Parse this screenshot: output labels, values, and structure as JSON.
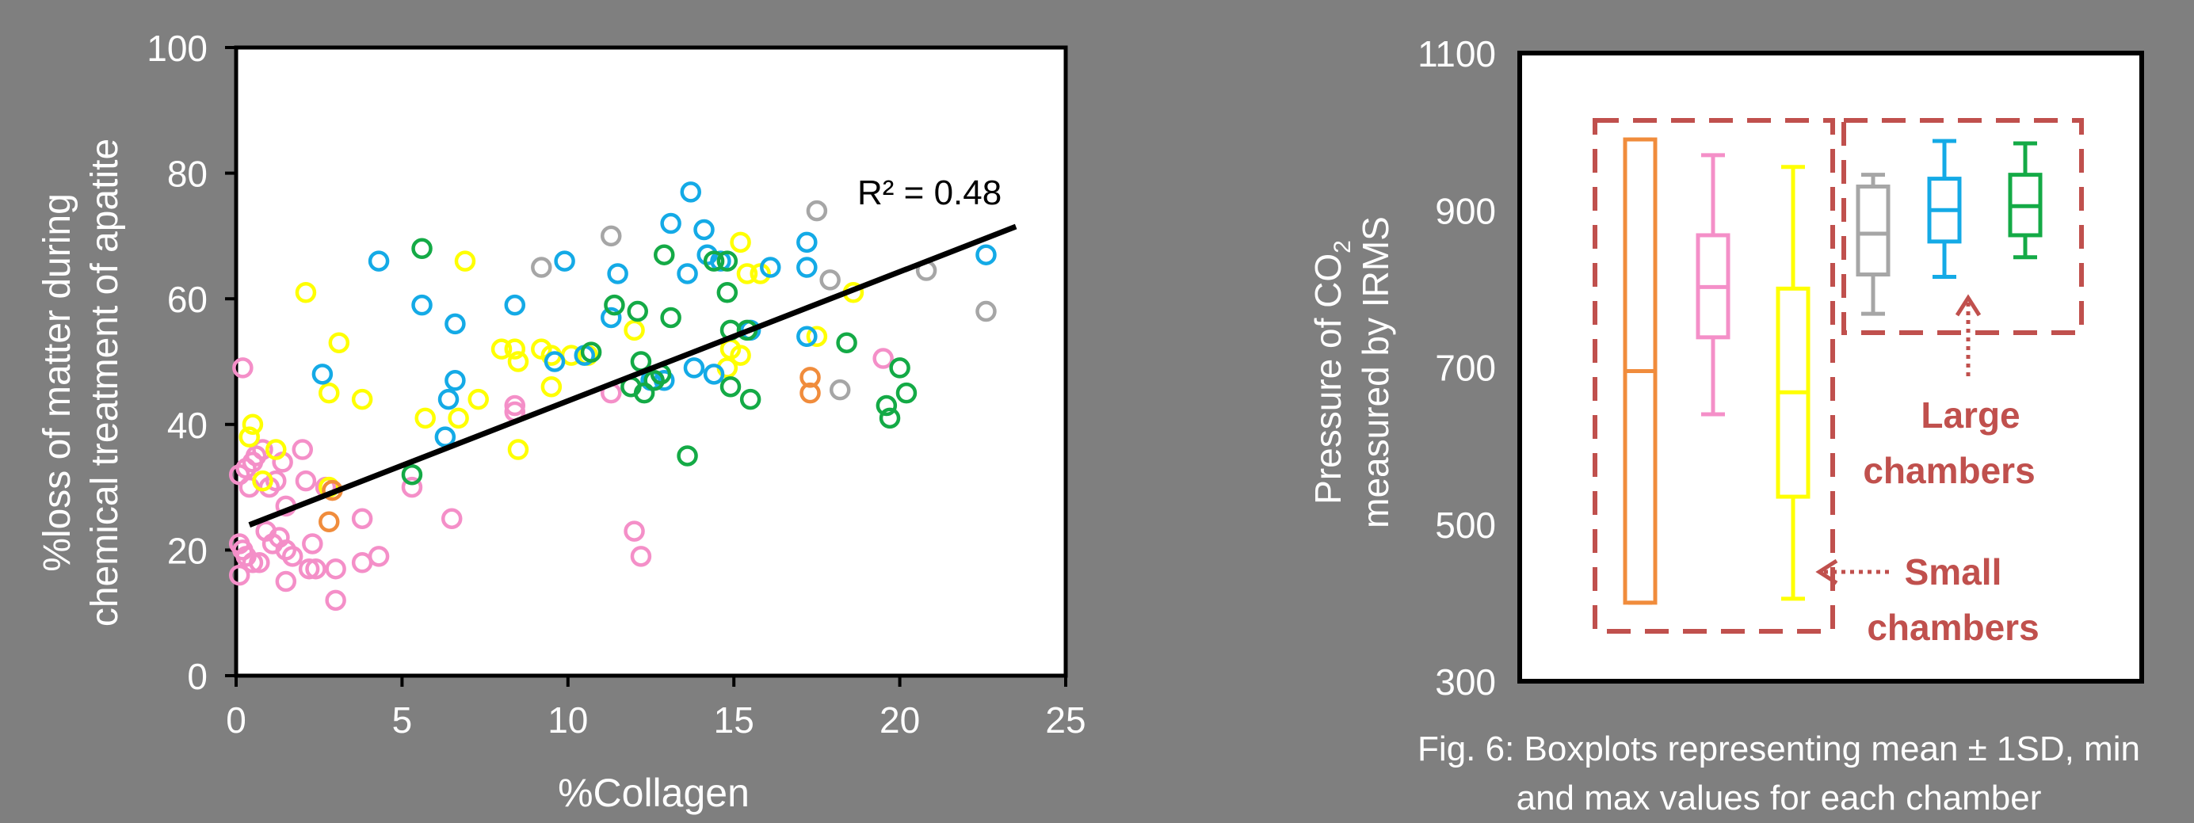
{
  "chart_data": [
    {
      "type": "scatter",
      "xlabel": "%Collagen",
      "ylabel_lines": [
        "%loss of matter during",
        "chemical treatment of apatite"
      ],
      "xlim": [
        0,
        25
      ],
      "ylim": [
        0,
        100
      ],
      "xticks": [
        0,
        5,
        10,
        15,
        20,
        25
      ],
      "yticks": [
        0,
        20,
        40,
        60,
        80,
        100
      ],
      "annotation": "R² = 0.48",
      "trendline": {
        "x": [
          0.4,
          23.5
        ],
        "y": [
          24,
          71.5
        ]
      },
      "colors": {
        "pink": "#f48fc8",
        "yellow": "#ffff00",
        "orange": "#f08c3c",
        "blue": "#14aae6",
        "green": "#14aa46",
        "gray": "#a6a6a6"
      },
      "series": [
        {
          "color": "pink",
          "points": [
            [
              0.2,
              49
            ],
            [
              0.1,
              32
            ],
            [
              0.3,
              33
            ],
            [
              0.5,
              34
            ],
            [
              0.6,
              35
            ],
            [
              0.4,
              30
            ],
            [
              0.8,
              36
            ],
            [
              1,
              30
            ],
            [
              1.2,
              31
            ],
            [
              1.4,
              34
            ],
            [
              1.5,
              27
            ],
            [
              0.1,
              21
            ],
            [
              0.2,
              20
            ],
            [
              0.3,
              19
            ],
            [
              0.1,
              16
            ],
            [
              0.5,
              18
            ],
            [
              0.7,
              18
            ],
            [
              0.9,
              23
            ],
            [
              1.1,
              21
            ],
            [
              1.3,
              22
            ],
            [
              1.5,
              20
            ],
            [
              1.7,
              19
            ],
            [
              1.5,
              15
            ],
            [
              2,
              36
            ],
            [
              2.1,
              31
            ],
            [
              2.2,
              17
            ],
            [
              2.4,
              17
            ],
            [
              2.3,
              21
            ],
            [
              2.7,
              30
            ],
            [
              3,
              17
            ],
            [
              3,
              12
            ],
            [
              3.8,
              25
            ],
            [
              3.8,
              18
            ],
            [
              4.3,
              19
            ],
            [
              5.3,
              30
            ],
            [
              6.5,
              25
            ],
            [
              8.4,
              43
            ],
            [
              8.4,
              42
            ],
            [
              11.3,
              45
            ],
            [
              12,
              23
            ],
            [
              12.2,
              19
            ],
            [
              19.5,
              50.5
            ]
          ]
        },
        {
          "color": "yellow",
          "points": [
            [
              0.4,
              38
            ],
            [
              0.5,
              40
            ],
            [
              0.8,
              31
            ],
            [
              1.2,
              36
            ],
            [
              2.1,
              61
            ],
            [
              2.8,
              45
            ],
            [
              2.8,
              30
            ],
            [
              3.1,
              53
            ],
            [
              3.8,
              44
            ],
            [
              5.7,
              41
            ],
            [
              7.3,
              44
            ],
            [
              6.7,
              41
            ],
            [
              6.9,
              66
            ],
            [
              8,
              52
            ],
            [
              8.4,
              52
            ],
            [
              8.5,
              50
            ],
            [
              8.5,
              36
            ],
            [
              9.2,
              52
            ],
            [
              9.5,
              46
            ],
            [
              9.5,
              51
            ],
            [
              10.1,
              51
            ],
            [
              10.6,
              51
            ],
            [
              12,
              55
            ],
            [
              14.8,
              49
            ],
            [
              14.9,
              52
            ],
            [
              15.2,
              51
            ],
            [
              15.2,
              69
            ],
            [
              15.4,
              64
            ],
            [
              15.8,
              64
            ],
            [
              17.5,
              54
            ],
            [
              18.6,
              61
            ]
          ]
        },
        {
          "color": "orange",
          "points": [
            [
              2.8,
              24.5
            ],
            [
              2.9,
              29.5
            ],
            [
              17.3,
              47.5
            ],
            [
              17.3,
              45
            ]
          ]
        },
        {
          "color": "blue",
          "points": [
            [
              2.6,
              48
            ],
            [
              4.3,
              66
            ],
            [
              5.6,
              59
            ],
            [
              6.3,
              38
            ],
            [
              6.4,
              44
            ],
            [
              6.6,
              47
            ],
            [
              6.6,
              56
            ],
            [
              8.4,
              59
            ],
            [
              9.6,
              50
            ],
            [
              9.9,
              66
            ],
            [
              10.5,
              51
            ],
            [
              11.3,
              57
            ],
            [
              11.5,
              64
            ],
            [
              12.5,
              47
            ],
            [
              12.9,
              47
            ],
            [
              13.1,
              72
            ],
            [
              13.6,
              64
            ],
            [
              13.7,
              77
            ],
            [
              13.8,
              49
            ],
            [
              14.1,
              71
            ],
            [
              14.2,
              67
            ],
            [
              14.4,
              48
            ],
            [
              14.6,
              66
            ],
            [
              15.5,
              55
            ],
            [
              16.1,
              65
            ],
            [
              17.2,
              69
            ],
            [
              17.2,
              54
            ],
            [
              17.2,
              65
            ],
            [
              22.6,
              67
            ]
          ]
        },
        {
          "color": "green",
          "points": [
            [
              5.3,
              32
            ],
            [
              5.6,
              68
            ],
            [
              10.7,
              51.5
            ],
            [
              11.4,
              59
            ],
            [
              11.9,
              46
            ],
            [
              12.1,
              58
            ],
            [
              12.2,
              50
            ],
            [
              12.3,
              45
            ],
            [
              12.6,
              47
            ],
            [
              12.8,
              48
            ],
            [
              12.9,
              67
            ],
            [
              13.1,
              57
            ],
            [
              13.6,
              35
            ],
            [
              14.4,
              66
            ],
            [
              14.8,
              61
            ],
            [
              14.8,
              66
            ],
            [
              14.9,
              55
            ],
            [
              14.9,
              46
            ],
            [
              15.4,
              55
            ],
            [
              15.5,
              44
            ],
            [
              18.4,
              53
            ],
            [
              19.6,
              43
            ],
            [
              19.7,
              41
            ],
            [
              20,
              49
            ],
            [
              20.2,
              45
            ]
          ]
        },
        {
          "color": "gray",
          "points": [
            [
              9.2,
              65
            ],
            [
              11.3,
              70
            ],
            [
              17.5,
              74
            ],
            [
              17.9,
              63
            ],
            [
              18.2,
              45.5
            ],
            [
              20.8,
              64.5
            ],
            [
              22.6,
              58
            ]
          ]
        }
      ]
    },
    {
      "type": "boxplot",
      "ylabel_lines": [
        "Pressure of CO",
        "measured by IRMS"
      ],
      "ylabel_subscript": "2",
      "ylim": [
        300,
        1100
      ],
      "yticks": [
        300,
        500,
        700,
        900,
        1100
      ],
      "boxes": [
        {
          "color": "#f08c3c",
          "min": 400,
          "q1": 400,
          "mid": 695,
          "q3": 990,
          "max": 990
        },
        {
          "color": "#f48fc8",
          "min": 640,
          "q1": 738,
          "mid": 802,
          "q3": 868,
          "max": 970
        },
        {
          "color": "#ffff00",
          "min": 405,
          "q1": 535,
          "mid": 668,
          "q3": 800,
          "max": 955
        },
        {
          "color": "#a6a6a6",
          "min": 768,
          "q1": 818,
          "mid": 870,
          "q3": 930,
          "max": 945
        },
        {
          "color": "#14aae6",
          "min": 815,
          "q1": 860,
          "mid": 900,
          "q3": 940,
          "max": 988
        },
        {
          "color": "#14aa46",
          "min": 840,
          "q1": 868,
          "mid": 905,
          "q3": 945,
          "max": 985
        }
      ],
      "groups": [
        {
          "label_lines": [
            "Small",
            "chambers"
          ],
          "boxes": [
            0,
            1,
            2
          ]
        },
        {
          "label_lines": [
            "Large",
            "chambers"
          ],
          "boxes": [
            3,
            4,
            5
          ]
        }
      ],
      "annotation_color": "#c0504d"
    }
  ],
  "caption_lines": [
    "Fig. 6: Boxplots representing mean ± 1SD, min",
    "and max values for each chamber"
  ]
}
